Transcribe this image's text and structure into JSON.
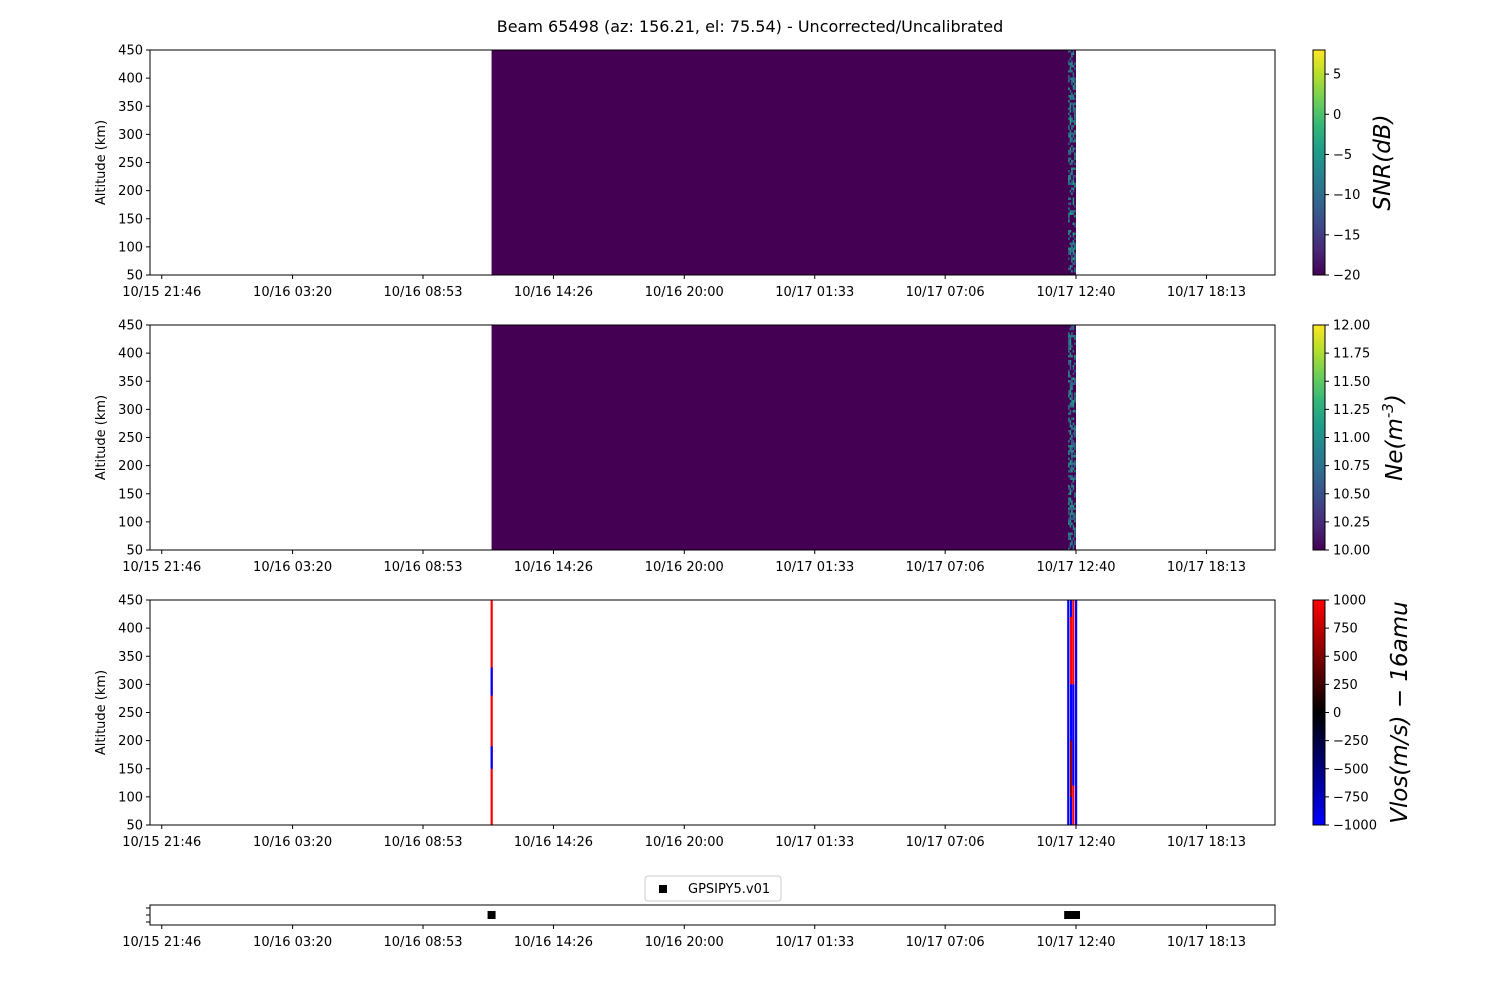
{
  "figure": {
    "title": "Beam 65498 (az: 156.21, el: 75.54) - Uncorrected/Uncalibrated"
  },
  "colors": {
    "background_panel": "#440154",
    "snr_colormap": [
      "#440154",
      "#482878",
      "#3e4989",
      "#31688e",
      "#26828e",
      "#1f9e89",
      "#35b779",
      "#6ece58",
      "#b5de2b",
      "#fde725"
    ],
    "vlos_colormap": [
      "#0000ff",
      "#000000",
      "#ff0000"
    ],
    "marker": "#000000"
  },
  "chart_data": [
    {
      "type": "heatmap",
      "title": "",
      "xlabel": "",
      "ylabel": "Altitude (km)",
      "colorbar_label": "SNR(dB)",
      "colorbar_range": [
        -20,
        8
      ],
      "colorbar_ticks": [
        "5",
        "0",
        "−5",
        "−10",
        "−15",
        "−20"
      ],
      "colorbar_tick_values": [
        5,
        0,
        -5,
        -10,
        -15,
        -20
      ],
      "colormap": "viridis",
      "ylim": [
        50,
        450
      ],
      "yticks": [
        50,
        100,
        150,
        200,
        250,
        300,
        350,
        400,
        450
      ],
      "xticks": [
        "10/15 21:46",
        "10/16 03:20",
        "10/16 08:53",
        "10/16 14:26",
        "10/16 20:00",
        "10/17 01:33",
        "10/17 07:06",
        "10/17 12:40",
        "10/17 18:13"
      ],
      "xlim": [
        "10/15 21:16",
        "10/17 21:08"
      ],
      "data_extent": [
        "10/16 11:48",
        "10/17 12:40"
      ],
      "fill_value": -20,
      "noisy_strip": [
        "10/17 12:20",
        "10/17 12:40"
      ]
    },
    {
      "type": "heatmap",
      "title": "",
      "xlabel": "",
      "ylabel": "Altitude (km)",
      "colorbar_label": "Ne(m^{-3})",
      "colorbar_range": [
        10.0,
        12.0
      ],
      "colorbar_ticks": [
        "12.00",
        "11.75",
        "11.50",
        "11.25",
        "11.00",
        "10.75",
        "10.50",
        "10.25",
        "10.00"
      ],
      "colorbar_tick_values": [
        12.0,
        11.75,
        11.5,
        11.25,
        11.0,
        10.75,
        10.5,
        10.25,
        10.0
      ],
      "colormap": "viridis",
      "ylim": [
        50,
        450
      ],
      "yticks": [
        50,
        100,
        150,
        200,
        250,
        300,
        350,
        400,
        450
      ],
      "xticks": [
        "10/15 21:46",
        "10/16 03:20",
        "10/16 08:53",
        "10/16 14:26",
        "10/16 20:00",
        "10/17 01:33",
        "10/17 07:06",
        "10/17 12:40",
        "10/17 18:13"
      ],
      "xlim": [
        "10/15 21:16",
        "10/17 21:08"
      ],
      "data_extent": [
        "10/16 11:48",
        "10/17 12:40"
      ],
      "fill_value": 10.0,
      "noisy_strip": [
        "10/17 12:20",
        "10/17 12:40"
      ]
    },
    {
      "type": "heatmap",
      "title": "",
      "xlabel": "",
      "ylabel": "Altitude (km)",
      "colorbar_label": "Vlos(m/s) − 16amu",
      "colorbar_range": [
        -1000,
        1000
      ],
      "colorbar_ticks": [
        "1000",
        "750",
        "500",
        "250",
        "0",
        "−250",
        "−500",
        "−750",
        "−1000"
      ],
      "colorbar_tick_values": [
        1000,
        750,
        500,
        250,
        0,
        -250,
        -500,
        -750,
        -1000
      ],
      "colormap": "bwr",
      "ylim": [
        50,
        450
      ],
      "yticks": [
        50,
        100,
        150,
        200,
        250,
        300,
        350,
        400,
        450
      ],
      "xticks": [
        "10/15 21:46",
        "10/16 03:20",
        "10/16 08:53",
        "10/16 14:26",
        "10/16 20:00",
        "10/17 01:33",
        "10/17 07:06",
        "10/17 12:40",
        "10/17 18:13"
      ],
      "xlim": [
        "10/15 21:16",
        "10/17 21:08"
      ],
      "data_lines": [
        {
          "time": "10/16 11:48",
          "segments": [
            {
              "from": 50,
              "to": 450,
              "value": 1000
            },
            {
              "from": 150,
              "to": 190,
              "value": -1000
            },
            {
              "from": 280,
              "to": 330,
              "value": -1000
            }
          ]
        },
        {
          "time": "10/17 12:20",
          "segments": [
            {
              "from": 50,
              "to": 450,
              "value": -1000
            }
          ]
        },
        {
          "time": "10/17 12:27",
          "segments": [
            {
              "from": 50,
              "to": 450,
              "value": -1000
            },
            {
              "from": 300,
              "to": 420,
              "value": 1000
            },
            {
              "from": 100,
              "to": 200,
              "value": 600
            }
          ]
        },
        {
          "time": "10/17 12:33",
          "segments": [
            {
              "from": 50,
              "to": 450,
              "value": 1000
            },
            {
              "from": 120,
              "to": 300,
              "value": -1000
            }
          ]
        },
        {
          "time": "10/17 12:40",
          "segments": [
            {
              "from": 50,
              "to": 450,
              "value": -1000
            }
          ]
        }
      ]
    },
    {
      "type": "scatter",
      "title": "",
      "legend": [
        "GPSIPY5.v01"
      ],
      "legend_position": "upper-center",
      "xticks": [
        "10/15 21:46",
        "10/16 03:20",
        "10/16 08:53",
        "10/16 14:26",
        "10/16 20:00",
        "10/17 01:33",
        "10/17 07:06",
        "10/17 12:40",
        "10/17 18:13"
      ],
      "xlim": [
        "10/15 21:16",
        "10/17 21:08"
      ],
      "series": [
        {
          "name": "GPSIPY5.v01",
          "marker": "square",
          "x": [
            "10/16 11:48",
            "10/17 12:20",
            "10/17 12:24",
            "10/17 12:28",
            "10/17 12:32",
            "10/17 12:36",
            "10/17 12:40"
          ]
        }
      ]
    }
  ]
}
